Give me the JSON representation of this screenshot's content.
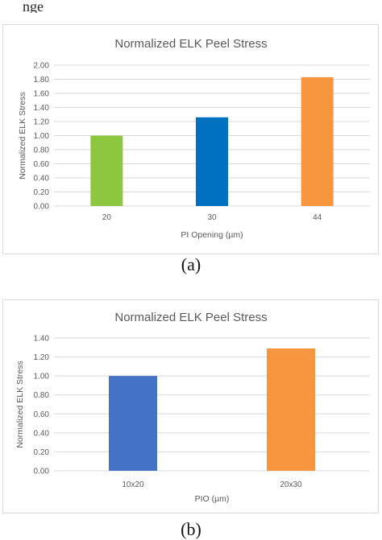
{
  "top_text": "nge",
  "captions": {
    "a": "(a)",
    "b": "(b)"
  },
  "chart_data": [
    {
      "type": "bar",
      "title": "Normalized ELK Peel Stress",
      "xlabel": "PI Opening (µm)",
      "ylabel": "Normalized ELK Stress",
      "categories": [
        "20",
        "30",
        "44"
      ],
      "values": [
        1.0,
        1.26,
        1.83
      ],
      "colors": [
        "#8dc63f",
        "#0070c0",
        "#f7963f"
      ],
      "ylim": [
        0,
        2.0
      ],
      "yticks": [
        "0.00",
        "0.20",
        "0.40",
        "0.60",
        "0.80",
        "1.00",
        "1.20",
        "1.40",
        "1.60",
        "1.80",
        "2.00"
      ],
      "grid": true,
      "legend": "none"
    },
    {
      "type": "bar",
      "title": "Normalized ELK Peel Stress",
      "xlabel": "PIO (µm)",
      "ylabel": "Normalized ELK Stress",
      "categories": [
        "10x20",
        "20x30"
      ],
      "values": [
        1.0,
        1.29
      ],
      "colors": [
        "#4472c4",
        "#f7963f"
      ],
      "ylim": [
        0,
        1.4
      ],
      "yticks": [
        "0.00",
        "0.20",
        "0.40",
        "0.60",
        "0.80",
        "1.00",
        "1.20",
        "1.40"
      ],
      "grid": true,
      "legend": "none"
    }
  ]
}
